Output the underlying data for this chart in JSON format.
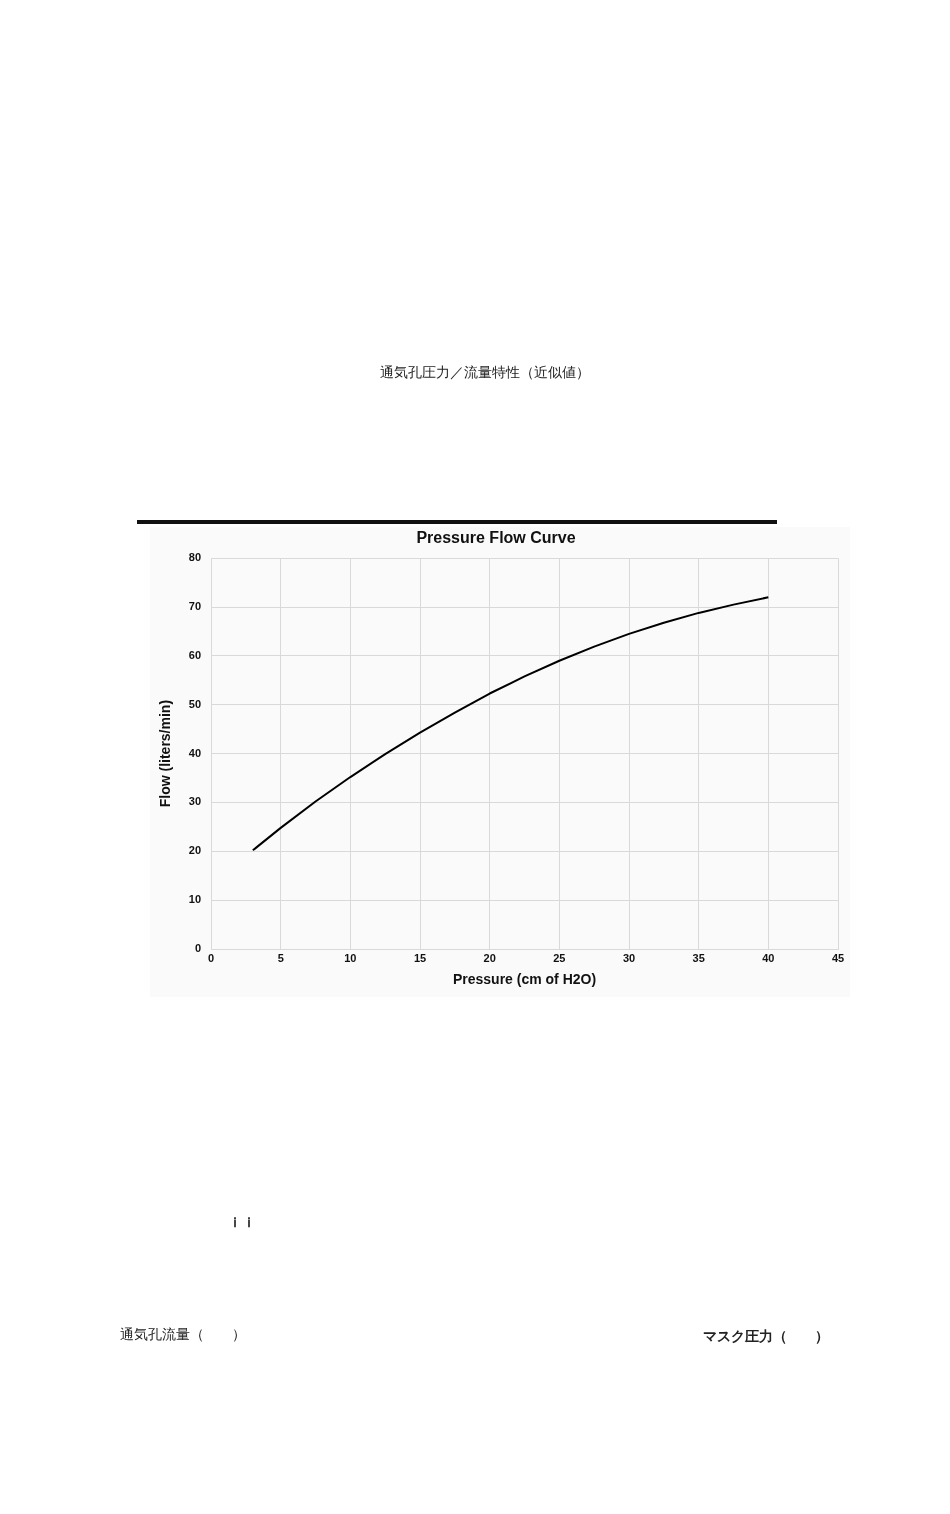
{
  "chart_data": {
    "type": "line",
    "title": "Pressure Flow Curve",
    "xlabel": "Pressure (cm of H2O)",
    "ylabel": "Flow (liters/min)",
    "x": [
      3,
      5,
      7.5,
      10,
      12.5,
      15,
      17.5,
      20,
      22.5,
      25,
      27.5,
      30,
      32.5,
      35,
      37.5,
      40
    ],
    "series": [
      {
        "color": "#000000",
        "values": [
          20.2,
          24.8,
          30.2,
          35.2,
          39.9,
          44.3,
          48.4,
          52.3,
          55.8,
          59,
          61.9,
          64.5,
          66.8,
          68.8,
          70.5,
          72
        ]
      }
    ],
    "xlim": [
      0,
      45
    ],
    "xticks": [
      0,
      5,
      10,
      15,
      20,
      25,
      30,
      35,
      40,
      45
    ],
    "ylim": [
      0,
      80
    ],
    "yticks": [
      0,
      10,
      20,
      30,
      40,
      50,
      60,
      70,
      80
    ],
    "grid": true,
    "legend": false,
    "marker": "none",
    "line_style": "solid",
    "annotations": [
      "通気孔圧力／流量特性（近似値）",
      "ｉｉ",
      "通気孔流量（　　）",
      "マスク圧力（　　）"
    ]
  }
}
